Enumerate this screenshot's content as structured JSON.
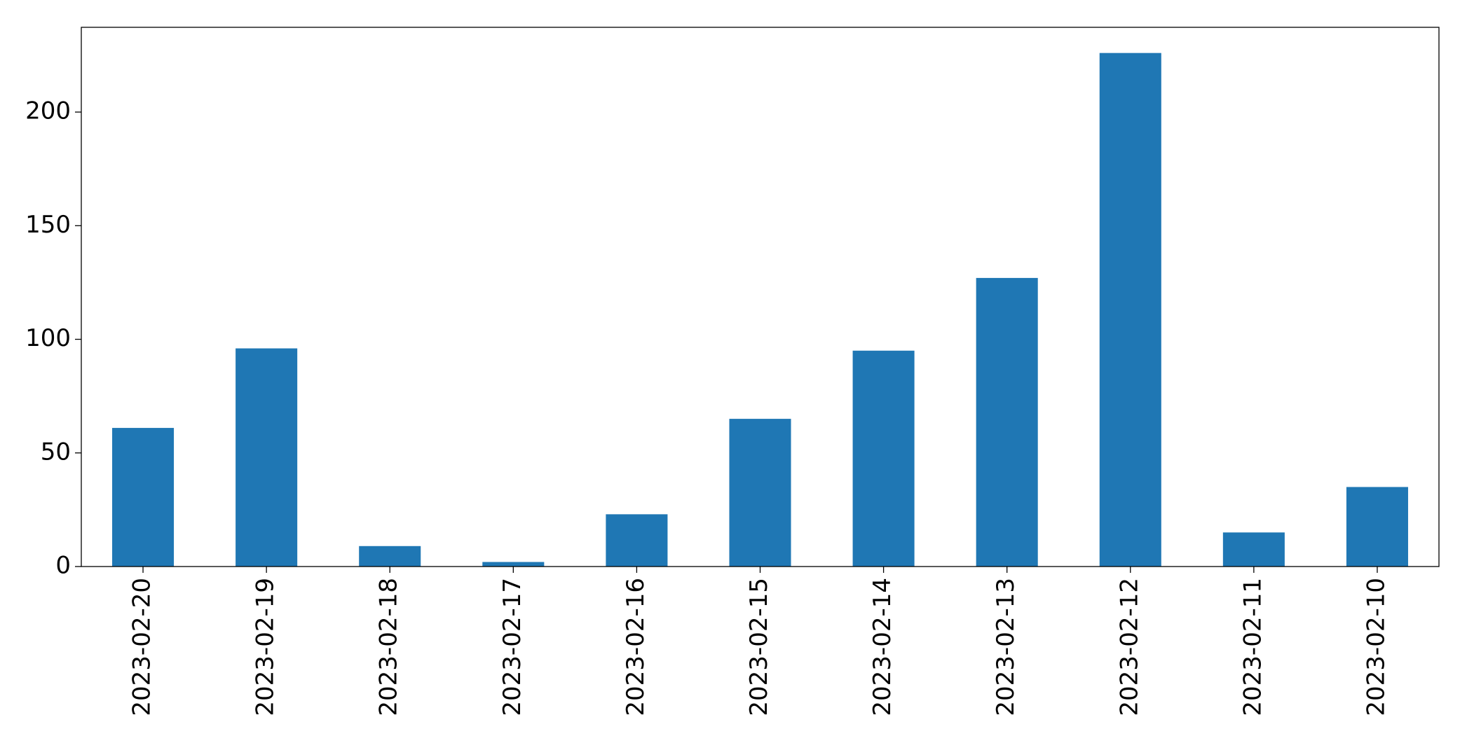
{
  "chart_data": {
    "type": "bar",
    "categories": [
      "2023-02-20",
      "2023-02-19",
      "2023-02-18",
      "2023-02-17",
      "2023-02-16",
      "2023-02-15",
      "2023-02-14",
      "2023-02-13",
      "2023-02-12",
      "2023-02-11",
      "2023-02-10"
    ],
    "values": [
      61,
      96,
      9,
      2,
      23,
      65,
      95,
      127,
      226,
      15,
      35
    ],
    "color": "#1f77b4",
    "ylim": [
      0,
      237.3
    ],
    "yticks": [
      0,
      50,
      100,
      150,
      200
    ],
    "grid": false
  }
}
